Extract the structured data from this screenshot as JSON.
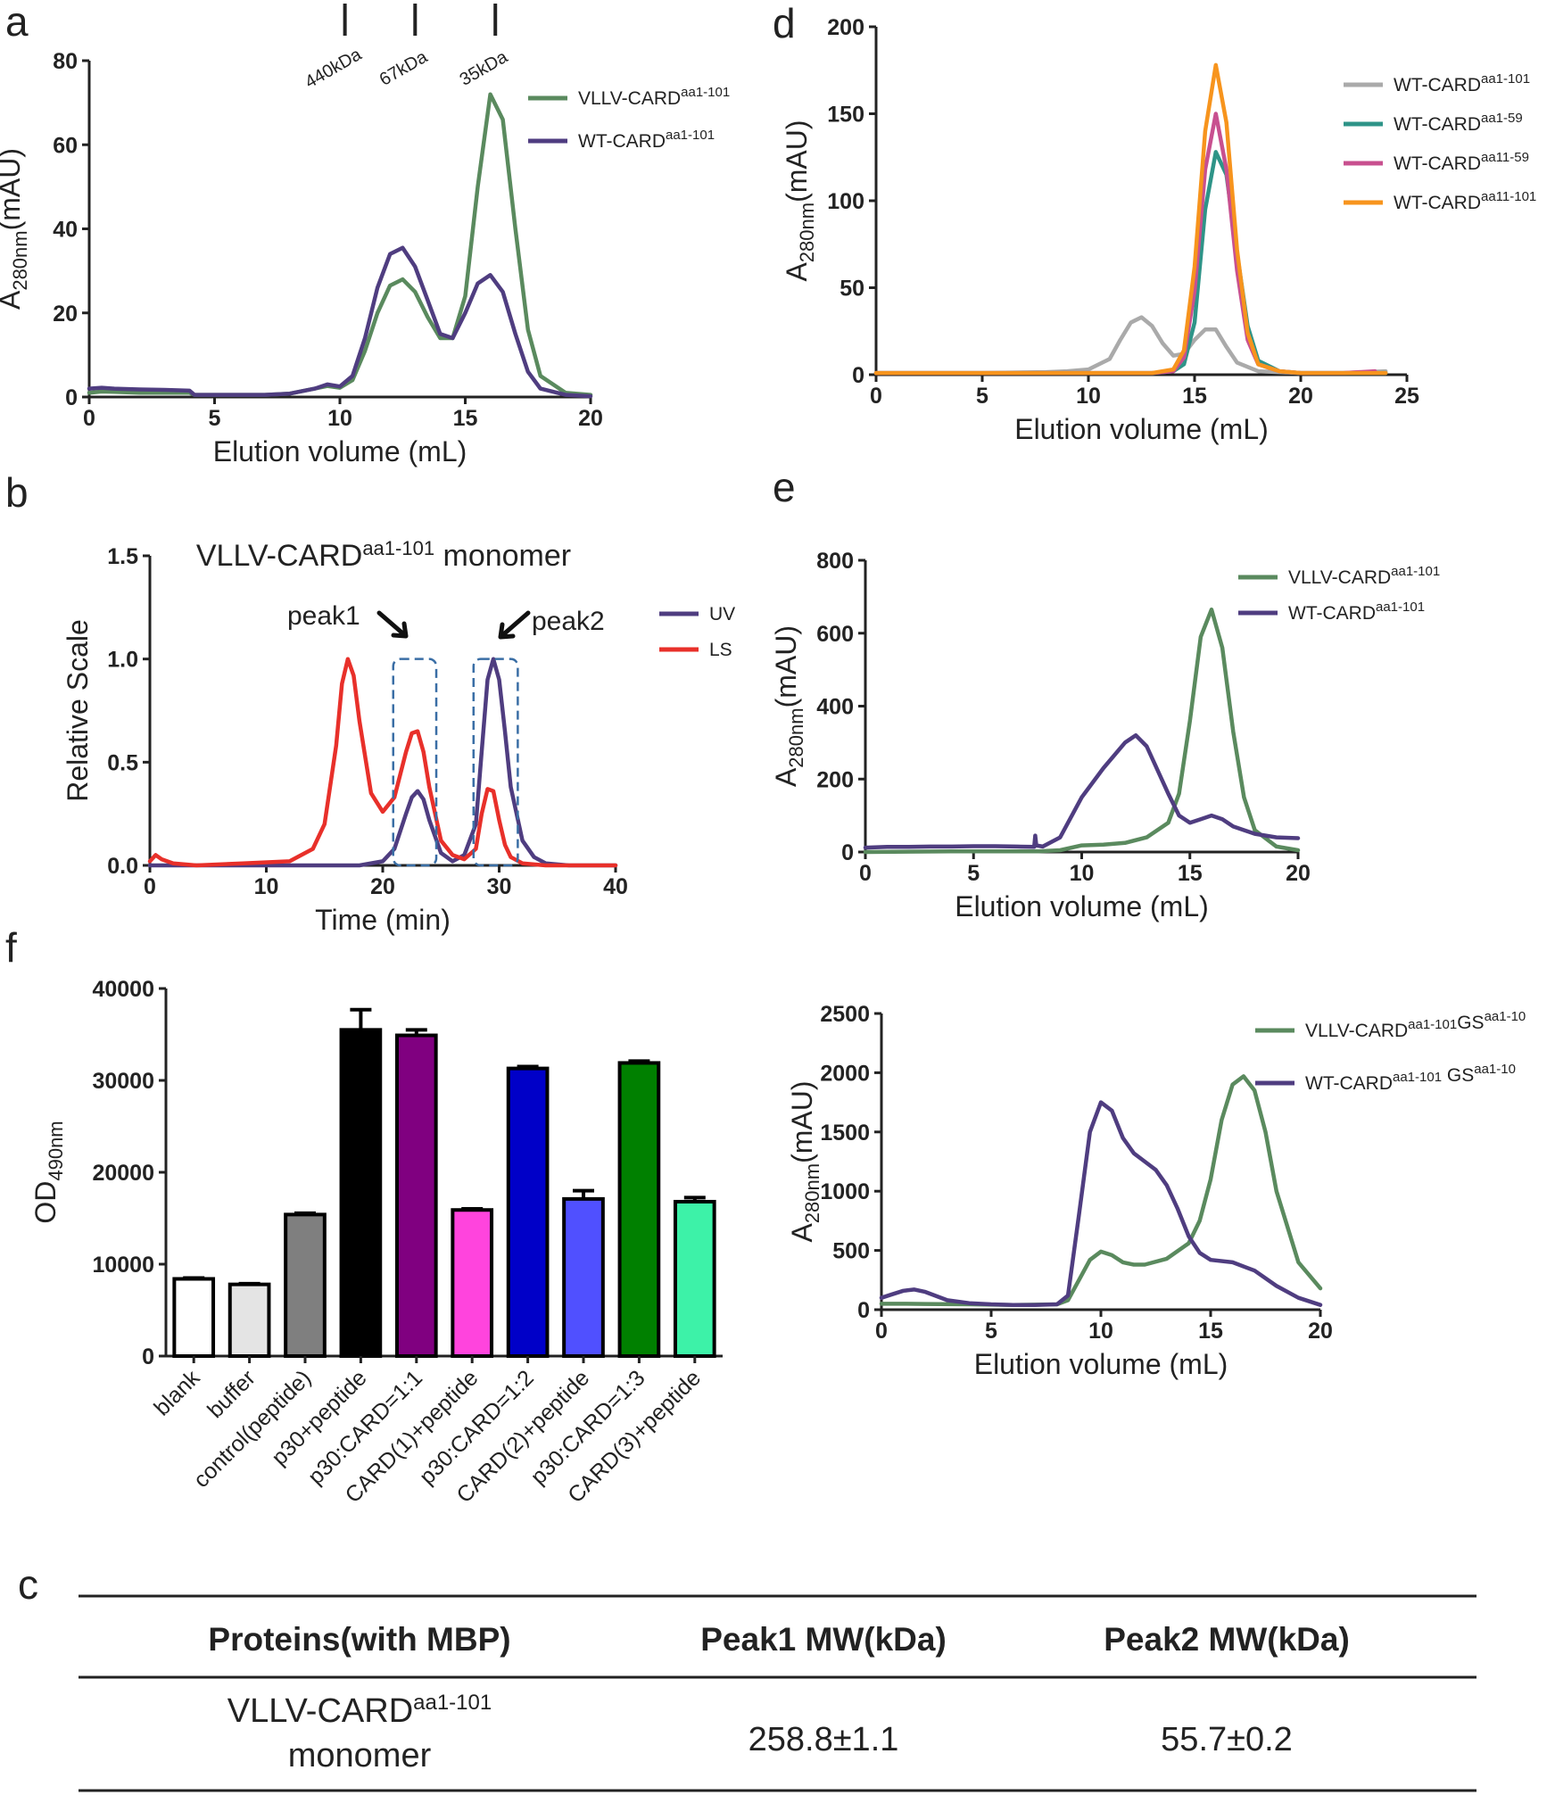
{
  "colors": {
    "purple": "#4f3d80",
    "green": "#5a8a5e",
    "red": "#e8302a",
    "gray": "#aaaaaa",
    "teal": "#2e9488",
    "pink": "#c8508f",
    "orange": "#f7941d",
    "dash": "#3a6ea5",
    "axis": "#222222"
  },
  "chart_data": [
    {
      "panel": "a",
      "type": "line",
      "xlabel": "Elution volume (mL)",
      "ylabel": "A280nm(mAU)",
      "xlim": [
        0,
        20
      ],
      "ylim": [
        0,
        80
      ],
      "xticks": [
        "0",
        "5",
        "10",
        "15",
        "20"
      ],
      "yticks": [
        "0",
        "20",
        "40",
        "60",
        "80"
      ],
      "markers": [
        {
          "label": "440kDa",
          "x": 10.2
        },
        {
          "label": "67kDa",
          "x": 13.0
        },
        {
          "label": "35kDa",
          "x": 16.2
        }
      ],
      "series": [
        {
          "name": "VLLV-CARD",
          "sup": "aa1-101",
          "color": "green",
          "x": [
            0,
            0.5,
            1,
            2,
            3,
            4,
            4.2,
            5,
            6,
            7,
            8,
            9,
            9.5,
            10,
            10.5,
            11,
            11.5,
            12,
            12.5,
            13,
            13.5,
            14,
            14.5,
            15,
            15.5,
            16,
            16.5,
            17,
            17.5,
            18,
            19,
            20
          ],
          "y": [
            1,
            1.3,
            1.2,
            1,
            1,
            1,
            0.5,
            0.5,
            0.5,
            0.5,
            0.8,
            2,
            2.6,
            2.2,
            4,
            11,
            20,
            26.5,
            28,
            25,
            19,
            14,
            14,
            24,
            50,
            72,
            66,
            40,
            16,
            5,
            1,
            0.5
          ]
        },
        {
          "name": "WT-CARD",
          "sup": "aa1-101",
          "color": "purple",
          "x": [
            0,
            0.5,
            1,
            2,
            3,
            4,
            4.2,
            5,
            6,
            7,
            8,
            9,
            9.5,
            10,
            10.5,
            11,
            11.5,
            12,
            12.5,
            13,
            13.5,
            14,
            14.5,
            15,
            15.5,
            16,
            16.5,
            17,
            17.5,
            18,
            19,
            20
          ],
          "y": [
            2,
            2.2,
            2,
            1.8,
            1.7,
            1.5,
            0.5,
            0.5,
            0.5,
            0.5,
            0.8,
            2,
            3,
            2.5,
            5,
            14,
            26,
            34,
            35.5,
            31,
            23,
            15,
            14,
            20,
            27,
            29,
            25,
            15,
            6,
            2,
            0.5,
            0.2
          ]
        }
      ]
    },
    {
      "panel": "d",
      "type": "line",
      "xlabel": "Elution volume (mL)",
      "ylabel": "A280nm(mAU)",
      "xlim": [
        0,
        25
      ],
      "ylim": [
        0,
        200
      ],
      "xticks": [
        "0",
        "5",
        "10",
        "15",
        "20",
        "25"
      ],
      "yticks": [
        "0",
        "50",
        "100",
        "150",
        "200"
      ],
      "series": [
        {
          "name": "WT-CARD",
          "sup": "aa1-101",
          "color": "gray",
          "x": [
            0,
            5,
            8,
            9,
            10,
            11,
            11.5,
            12,
            12.5,
            13,
            13.5,
            14,
            14.5,
            15,
            15.5,
            16,
            16.5,
            17,
            18,
            20,
            22,
            24
          ],
          "y": [
            1,
            1,
            1.5,
            2,
            3,
            9,
            20,
            30,
            33,
            28,
            18,
            11,
            12,
            20,
            26,
            26,
            16,
            7,
            2,
            1,
            1,
            2
          ]
        },
        {
          "name": "WT-CARD",
          "sup": "aa1-59",
          "color": "teal",
          "x": [
            0,
            10,
            13,
            14,
            14.5,
            15,
            15.5,
            16,
            16.5,
            17,
            17.5,
            18,
            19,
            20,
            22,
            24
          ],
          "y": [
            1,
            1,
            1,
            2,
            6,
            30,
            95,
            128,
            115,
            70,
            28,
            8,
            2,
            1,
            1,
            1
          ]
        },
        {
          "name": "WT-CARD",
          "sup": "aa11-59",
          "color": "pink",
          "x": [
            0,
            10,
            13,
            14,
            14.5,
            15,
            15.5,
            16,
            16.5,
            17,
            17.5,
            18,
            19,
            20,
            22,
            23.5
          ],
          "y": [
            1,
            1,
            1,
            2,
            10,
            48,
            118,
            150,
            118,
            60,
            20,
            6,
            2,
            1,
            1,
            2
          ]
        },
        {
          "name": "WT-CARD",
          "sup": "aa11-101",
          "color": "orange",
          "x": [
            0,
            10,
            13,
            14,
            14.5,
            15,
            15.5,
            16,
            16.5,
            17,
            17.5,
            18,
            19,
            20,
            22,
            24
          ],
          "y": [
            1,
            1,
            1,
            3,
            14,
            62,
            140,
            178,
            145,
            72,
            24,
            6,
            2,
            1,
            1,
            1
          ]
        }
      ]
    },
    {
      "panel": "b",
      "type": "line",
      "title": "VLLV-CARD",
      "title_sup": "aa1-101",
      "title_suffix": " monomer",
      "xlabel": "Time (min)",
      "ylabel": "Relative Scale",
      "xlim": [
        0,
        40
      ],
      "ylim": [
        0,
        1.5
      ],
      "xticks": [
        "0",
        "10",
        "20",
        "30",
        "40"
      ],
      "yticks": [
        "0.0",
        "0.5",
        "1.0",
        "1.5"
      ],
      "annotations": [
        "peak1",
        "peak2"
      ],
      "series": [
        {
          "name": "UV",
          "color": "purple",
          "x": [
            0,
            12,
            18,
            20,
            21,
            22,
            22.5,
            23,
            23.5,
            24,
            25,
            26,
            27,
            28,
            28.5,
            29,
            29.5,
            30,
            30.5,
            31,
            32,
            33,
            34,
            36,
            40
          ],
          "y": [
            0,
            0,
            0,
            0.02,
            0.08,
            0.25,
            0.33,
            0.36,
            0.32,
            0.22,
            0.06,
            0.02,
            0.05,
            0.2,
            0.55,
            0.9,
            1.0,
            0.9,
            0.65,
            0.38,
            0.12,
            0.04,
            0.01,
            0,
            0
          ]
        },
        {
          "name": "LS",
          "color": "red",
          "x": [
            0,
            0.5,
            1,
            2,
            4,
            8,
            12,
            14,
            15,
            16,
            16.5,
            17,
            17.5,
            18,
            19,
            20,
            21,
            22,
            22.5,
            23,
            23.5,
            24,
            25,
            26,
            27,
            28,
            28.5,
            29,
            29.5,
            30,
            30.5,
            31,
            32,
            34,
            40
          ],
          "y": [
            0.02,
            0.05,
            0.03,
            0.01,
            0,
            0.01,
            0.02,
            0.08,
            0.2,
            0.58,
            0.88,
            1.0,
            0.92,
            0.7,
            0.35,
            0.26,
            0.33,
            0.55,
            0.64,
            0.65,
            0.55,
            0.38,
            0.12,
            0.05,
            0.03,
            0.08,
            0.25,
            0.37,
            0.36,
            0.22,
            0.1,
            0.04,
            0.01,
            0,
            0
          ]
        }
      ]
    },
    {
      "panel": "e-top",
      "type": "line",
      "xlabel": "Elution volume (mL)",
      "ylabel": "A280nm(mAU)",
      "xlim": [
        0,
        20
      ],
      "ylim": [
        0,
        800
      ],
      "xticks": [
        "0",
        "5",
        "10",
        "15",
        "20"
      ],
      "yticks": [
        "0",
        "200",
        "400",
        "600",
        "800"
      ],
      "series": [
        {
          "name": "VLLV-CARD",
          "sup": "aa1-101",
          "color": "green",
          "x": [
            0,
            4,
            8,
            9,
            10,
            11,
            12,
            13,
            14,
            14.5,
            15,
            15.5,
            16,
            16.5,
            17,
            17.5,
            18,
            19,
            20
          ],
          "y": [
            0,
            2,
            2,
            5,
            18,
            20,
            25,
            40,
            80,
            160,
            360,
            590,
            665,
            560,
            330,
            150,
            60,
            15,
            5
          ]
        },
        {
          "name": "WT-CARD",
          "sup": "aa1-101",
          "color": "purple",
          "x": [
            0,
            1,
            2,
            3,
            4,
            5,
            6,
            7,
            7.8,
            7.85,
            7.9,
            8.2,
            9,
            10,
            11,
            12,
            12.5,
            13,
            14,
            14.5,
            15,
            15.5,
            16,
            16.5,
            17,
            18,
            19,
            20
          ],
          "y": [
            12,
            14,
            14,
            15,
            15,
            16,
            16,
            15,
            14,
            45,
            18,
            15,
            40,
            150,
            230,
            300,
            320,
            290,
            160,
            100,
            80,
            90,
            100,
            90,
            70,
            50,
            40,
            38
          ]
        }
      ]
    },
    {
      "panel": "e-bottom",
      "type": "line",
      "xlabel": "Elution volume (mL)",
      "ylabel": "A280nm(mAU)",
      "xlim": [
        0,
        20
      ],
      "ylim": [
        0,
        2500
      ],
      "xticks": [
        "0",
        "5",
        "10",
        "15",
        "20"
      ],
      "yticks": [
        "0",
        "500",
        "1000",
        "1500",
        "2000",
        "2500"
      ],
      "series": [
        {
          "name": "VLLV-CARD",
          "sup": "aa1-101",
          "suffix": "GS",
          "suffix_sup": "aa1-10",
          "color": "green",
          "x": [
            0,
            1,
            2,
            4,
            6,
            8,
            8.5,
            9,
            9.5,
            10,
            10.5,
            11,
            11.5,
            12,
            13,
            14,
            14.5,
            15,
            15.5,
            16,
            16.5,
            17,
            17.5,
            18,
            19,
            20
          ],
          "y": [
            50,
            50,
            48,
            45,
            40,
            45,
            80,
            250,
            420,
            490,
            460,
            400,
            380,
            380,
            430,
            560,
            750,
            1100,
            1600,
            1900,
            1970,
            1850,
            1500,
            1000,
            400,
            180
          ]
        },
        {
          "name": "WT-CARD",
          "sup": "aa1-101",
          "suffix": " GS",
          "suffix_sup": "aa1-10",
          "color": "purple",
          "x": [
            0,
            0.5,
            1,
            1.5,
            2,
            3,
            4,
            5,
            6,
            7,
            8,
            8.5,
            9,
            9.5,
            10,
            10.5,
            11,
            11.5,
            12,
            12.5,
            13,
            13.5,
            14,
            14.5,
            15,
            16,
            17,
            18,
            19,
            20
          ],
          "y": [
            100,
            130,
            160,
            170,
            150,
            80,
            55,
            45,
            40,
            40,
            45,
            120,
            800,
            1500,
            1750,
            1680,
            1450,
            1320,
            1250,
            1180,
            1050,
            850,
            620,
            480,
            420,
            400,
            330,
            200,
            100,
            40
          ]
        }
      ]
    },
    {
      "panel": "f",
      "type": "bar",
      "ylabel": "OD490nm",
      "ylim": [
        0,
        40000
      ],
      "yticks": [
        "0",
        "10000",
        "20000",
        "30000",
        "40000"
      ],
      "categories": [
        "blank",
        "buffer",
        "control(peptide)",
        "p30+peptide",
        "p30:CARD=1:1",
        "CARD(1)+peptide",
        "p30:CARD=1:2",
        "CARD(2)+peptide",
        "p30:CARD=1:3",
        "CARD(3)+peptide"
      ],
      "values": [
        8400,
        7800,
        15400,
        35500,
        34900,
        15900,
        31300,
        17100,
        31900,
        16800
      ],
      "errors": [
        100,
        80,
        150,
        2200,
        600,
        120,
        200,
        900,
        200,
        450
      ],
      "bar_colors": [
        "#ffffff",
        "#e4e4e4",
        "#7f7f7f",
        "#000000",
        "#800080",
        "#ff44dd",
        "#0000c8",
        "#5050ff",
        "#008000",
        "#3df2a8"
      ]
    }
  ],
  "panels": {
    "a": "a",
    "b": "b",
    "c": "c",
    "d": "d",
    "e": "e",
    "f": "f"
  },
  "table": {
    "headers": [
      "Proteins(with MBP)",
      "Peak1 MW(kDa)",
      "Peak2 MW(kDa)"
    ],
    "row_name": "VLLV-CARD",
    "row_sup": "aa1-101",
    "row_name2": "monomer",
    "peak1": "258.8±1.1",
    "peak2": "55.7±0.2"
  }
}
